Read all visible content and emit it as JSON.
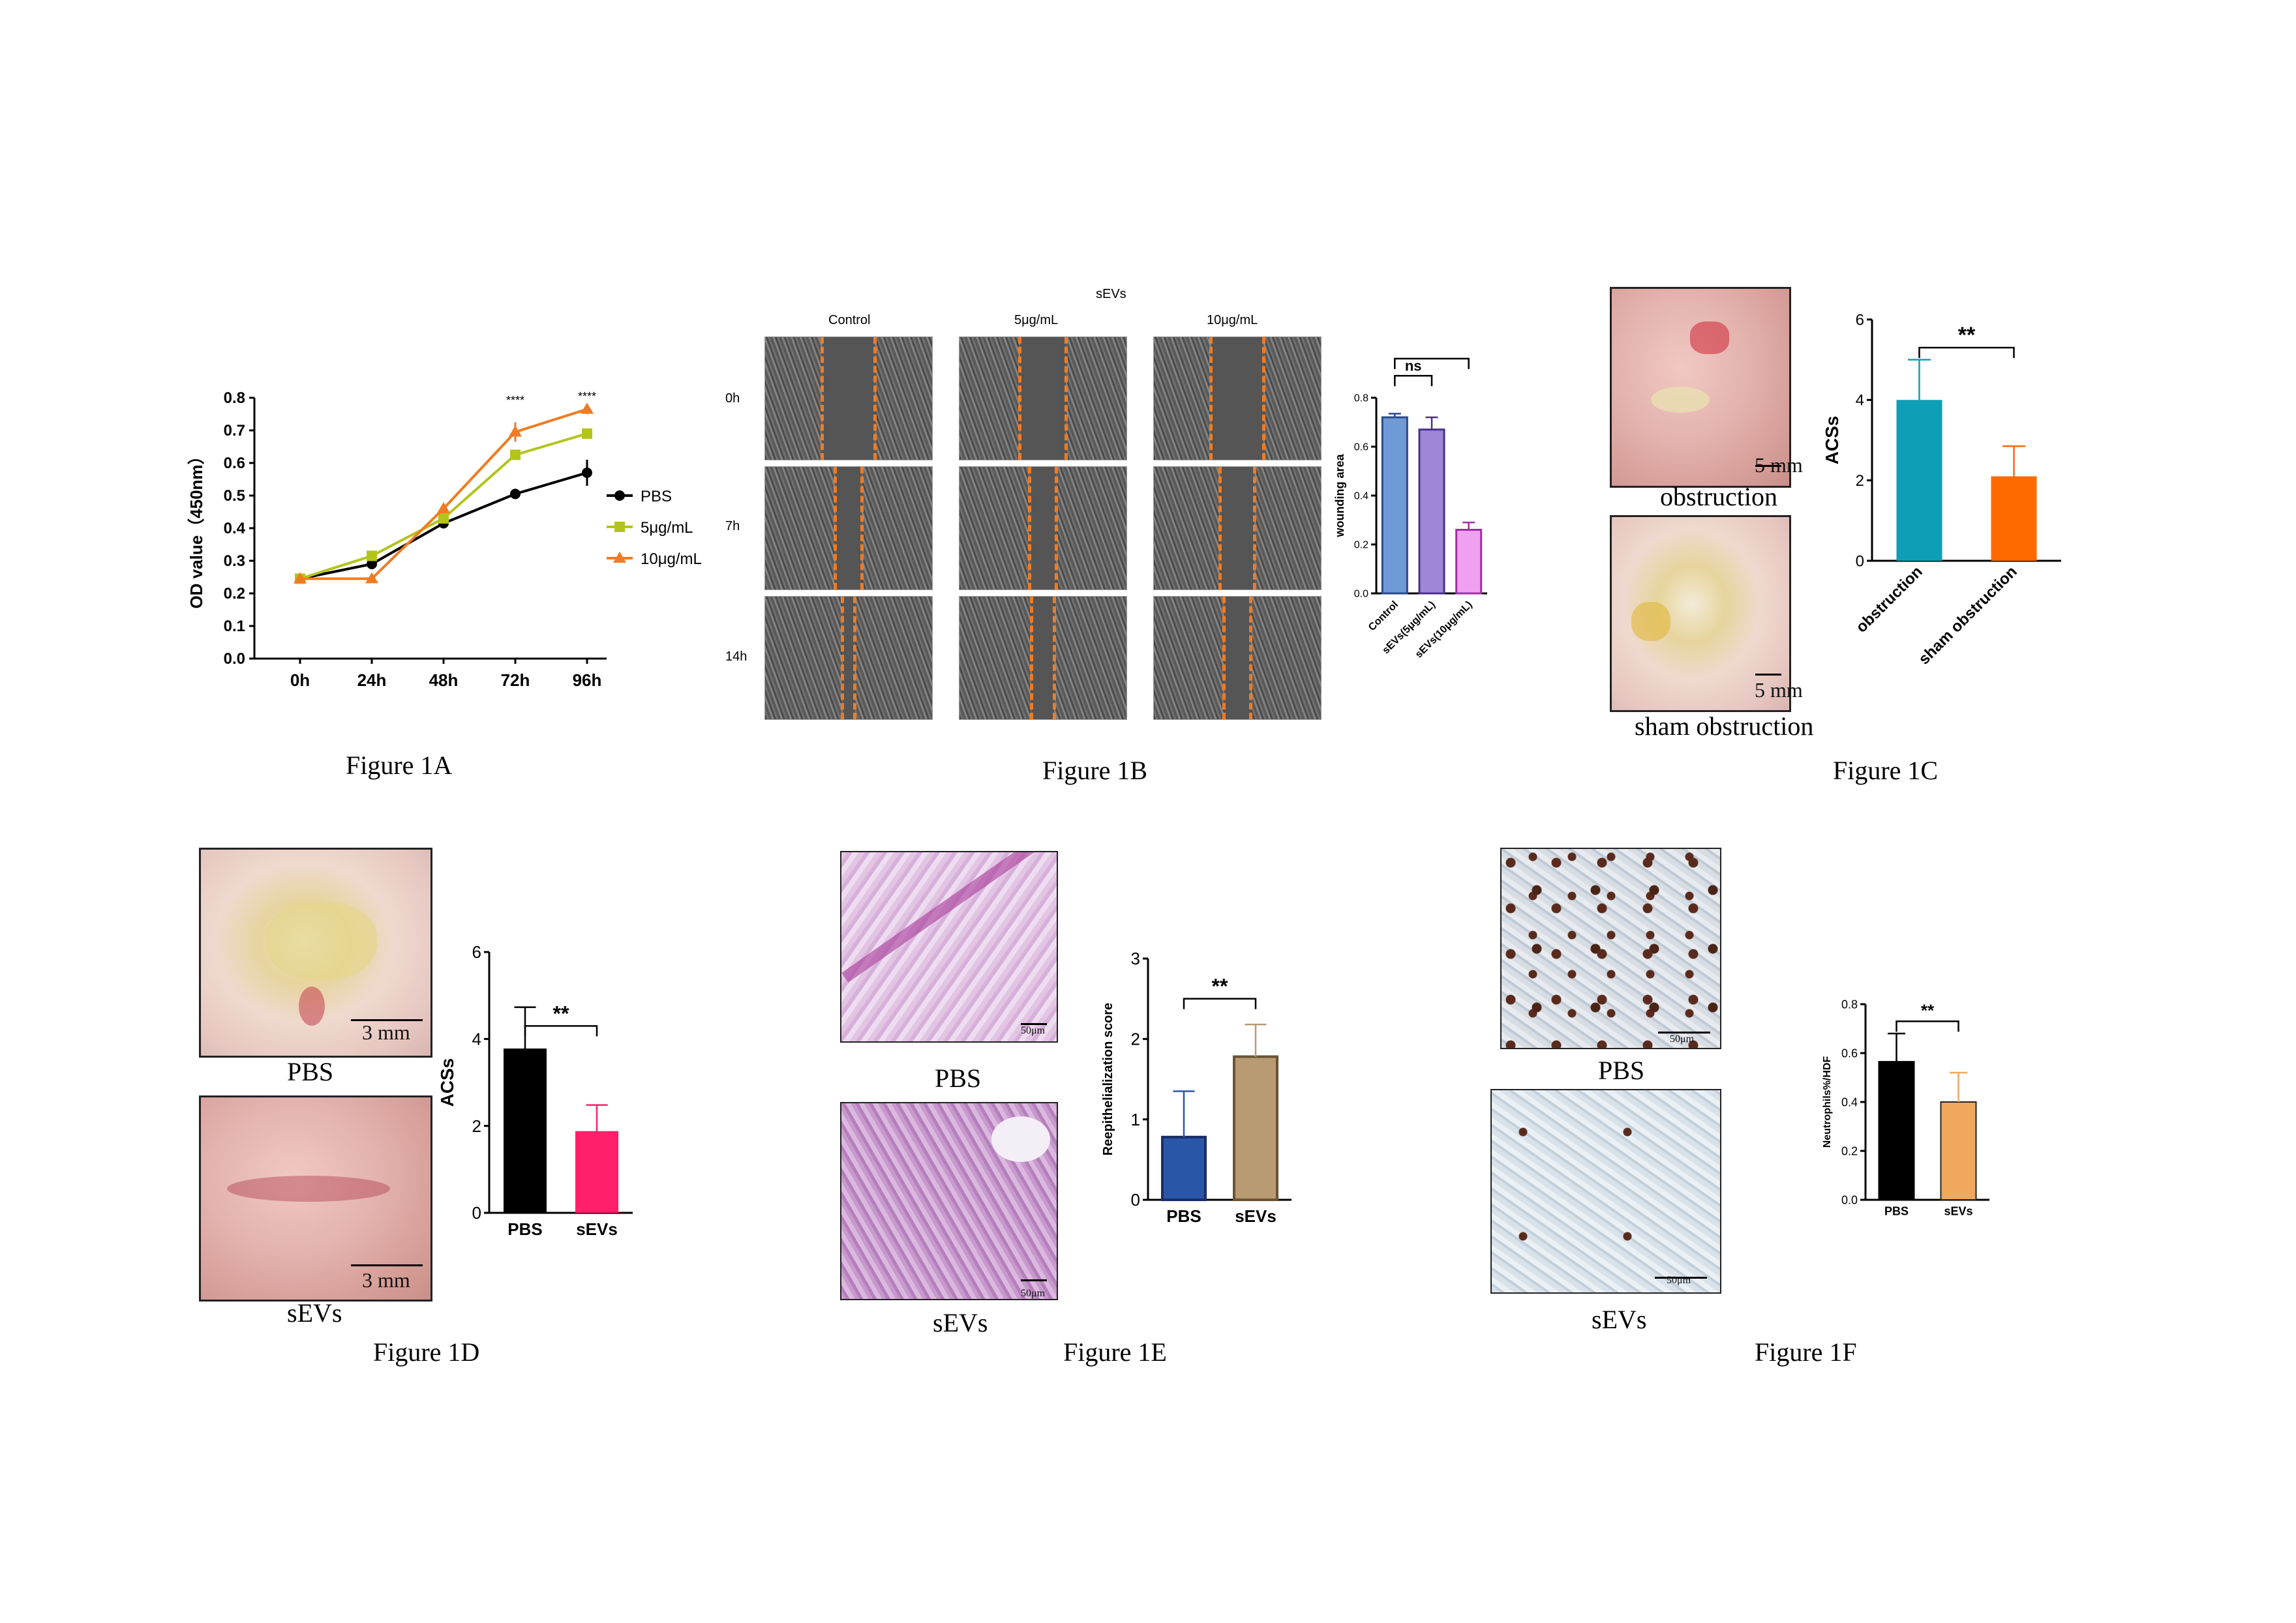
{
  "colors": {
    "pbs": "#000000",
    "low": "#b3c41c",
    "high": "#f07b22",
    "cyan": "#0e9eb5",
    "orange": "#ff6a00",
    "pink": "#ff1f6a",
    "blue": "#2a56a8",
    "tan": "#b89b72",
    "lightorange": "#f0a85c",
    "purple": "#9e87d6",
    "lilac": "#f0a0f0",
    "blue_light": "#6e9bd6"
  },
  "fig1a": {
    "caption": "Figure 1A",
    "chart_data": {
      "type": "line",
      "categories": [
        "0h",
        "24h",
        "48h",
        "72h",
        "96h"
      ],
      "ylabel": "OD value（450nm）",
      "ylim": [
        0,
        0.8
      ],
      "yticks": [
        "0.0",
        "0.1",
        "0.2",
        "0.3",
        "0.4",
        "0.5",
        "0.6",
        "0.7",
        "0.8"
      ],
      "series": [
        {
          "name": "PBS",
          "values": [
            0.245,
            0.29,
            0.415,
            0.505,
            0.57
          ],
          "err": [
            0.01,
            0.01,
            0.01,
            0.01,
            0.04
          ]
        },
        {
          "name": "5μg/mL",
          "values": [
            0.245,
            0.315,
            0.43,
            0.625,
            0.69
          ],
          "err": [
            0.01,
            0.01,
            0.01,
            0.01,
            0.01
          ]
        },
        {
          "name": "10μg/mL",
          "values": [
            0.245,
            0.245,
            0.46,
            0.695,
            0.765
          ],
          "err": [
            0.01,
            0.01,
            0.015,
            0.03,
            0.015
          ]
        }
      ],
      "annotations": [
        "****",
        "****"
      ]
    }
  },
  "fig1b": {
    "caption": "Figure 1B",
    "group_title": "sEVs",
    "columns": [
      "Control",
      "5μg/mL",
      "10μg/mL"
    ],
    "rows": [
      "0h",
      "7h",
      "14h"
    ],
    "chart_data": {
      "type": "bar",
      "categories": [
        "Control",
        "sEVs(5μg/mL)",
        "sEVs(10μg/mL)"
      ],
      "values": [
        0.72,
        0.67,
        0.26
      ],
      "err": [
        0.015,
        0.05,
        0.03
      ],
      "ylabel": "wounding area",
      "ylim": [
        0,
        0.8
      ],
      "yticks": [
        "0.0",
        "0.2",
        "0.4",
        "0.6",
        "0.8"
      ],
      "sig": [
        "ns",
        "****"
      ]
    }
  },
  "fig1c": {
    "caption": "Figure 1C",
    "photo_labels": [
      "obstruction",
      "sham obstruction"
    ],
    "scale": "5 mm",
    "chart_data": {
      "type": "bar",
      "categories": [
        "obstruction",
        "sham obstruction"
      ],
      "values": [
        4.0,
        2.1
      ],
      "err": [
        1.0,
        0.75
      ],
      "ylabel": "ACSs",
      "ylim": [
        0,
        6
      ],
      "yticks": [
        "0",
        "2",
        "4",
        "6"
      ],
      "sig": [
        "**"
      ]
    }
  },
  "fig1d": {
    "caption": "Figure 1D",
    "photo_labels": [
      "PBS",
      "sEVs"
    ],
    "scale": "3 mm",
    "chart_data": {
      "type": "bar",
      "categories": [
        "PBS",
        "sEVs"
      ],
      "values": [
        3.78,
        1.88
      ],
      "err": [
        0.95,
        0.6
      ],
      "ylabel": "ACSs",
      "ylim": [
        0,
        6
      ],
      "yticks": [
        "0",
        "2",
        "4",
        "6"
      ],
      "sig": [
        "**"
      ]
    }
  },
  "fig1e": {
    "caption": "Figure 1E",
    "photo_labels": [
      "PBS",
      "sEVs"
    ],
    "scale": "50μm",
    "chart_data": {
      "type": "bar",
      "categories": [
        "PBS",
        "sEVs"
      ],
      "values": [
        0.78,
        1.78
      ],
      "err": [
        0.57,
        0.4
      ],
      "ylabel": "Reepithelialization score",
      "ylim": [
        0,
        3
      ],
      "yticks": [
        "0",
        "1",
        "2",
        "3"
      ],
      "sig": [
        "**"
      ]
    }
  },
  "fig1f": {
    "caption": "Figure 1F",
    "photo_labels": [
      "PBS",
      "sEVs"
    ],
    "scale": "50μm",
    "chart_data": {
      "type": "bar",
      "categories": [
        "PBS",
        "sEVs"
      ],
      "values": [
        0.565,
        0.4
      ],
      "err": [
        0.115,
        0.12
      ],
      "ylabel": "Neutrophils%/HDF",
      "ylim": [
        0,
        0.8
      ],
      "yticks": [
        "0.0",
        "0.2",
        "0.4",
        "0.6",
        "0.8"
      ],
      "sig": [
        "**"
      ]
    }
  }
}
